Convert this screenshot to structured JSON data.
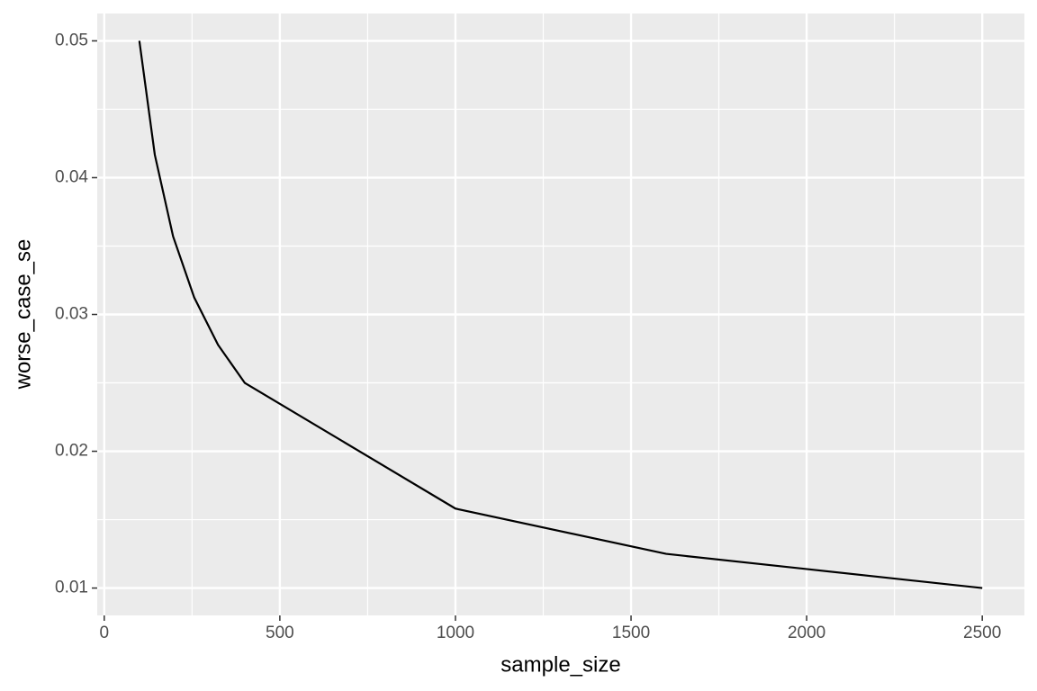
{
  "chart_data": {
    "type": "line",
    "x_label": "sample_size",
    "y_label": "worse_case_se",
    "x": [
      100,
      144,
      196,
      256,
      324,
      400,
      1000,
      1600,
      2500
    ],
    "values": [
      0.05,
      0.04167,
      0.03571,
      0.03125,
      0.02778,
      0.025,
      0.01581,
      0.0125,
      0.01
    ],
    "color": "#000000",
    "xlim": [
      -20,
      2620
    ],
    "xticks": [
      0,
      500,
      1000,
      1500,
      2000,
      2500
    ],
    "ylim": [
      0.008,
      0.052
    ],
    "yticks": [
      0.01,
      0.02,
      0.03,
      0.04,
      0.05
    ],
    "grid": true
  }
}
